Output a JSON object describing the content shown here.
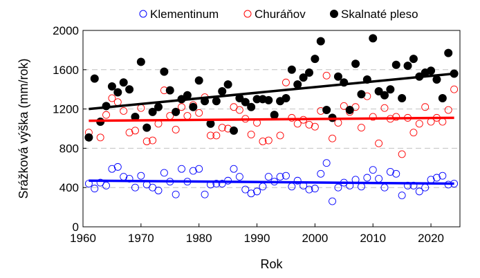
{
  "chart_data": {
    "type": "scatter",
    "title": "",
    "xlabel": "Rok",
    "ylabel": "Srážková  výška (mm/rok)",
    "xlim": [
      1960,
      2025
    ],
    "ylim": [
      0,
      2000
    ],
    "x_ticks": [
      1960,
      1970,
      1980,
      1990,
      2000,
      2010,
      2020
    ],
    "y_ticks": [
      0,
      400,
      800,
      1200,
      1600,
      2000
    ],
    "grid": "horizontal dashed",
    "legend_position": "top",
    "series": [
      {
        "name": "Klementinum",
        "color": "#0000ff",
        "marker": "open-circle",
        "x": [
          1961,
          1962,
          1963,
          1964,
          1965,
          1966,
          1967,
          1968,
          1969,
          1970,
          1971,
          1972,
          1973,
          1974,
          1975,
          1976,
          1977,
          1978,
          1979,
          1980,
          1981,
          1982,
          1983,
          1984,
          1985,
          1986,
          1987,
          1988,
          1989,
          1990,
          1991,
          1992,
          1993,
          1994,
          1995,
          1996,
          1997,
          1998,
          1999,
          2000,
          2001,
          2002,
          2003,
          2004,
          2005,
          2006,
          2007,
          2008,
          2009,
          2010,
          2011,
          2012,
          2013,
          2014,
          2015,
          2016,
          2017,
          2018,
          2019,
          2020,
          2021,
          2022,
          2023,
          2024
        ],
        "values": [
          440,
          390,
          450,
          420,
          590,
          610,
          510,
          490,
          400,
          520,
          430,
          400,
          370,
          550,
          460,
          330,
          590,
          460,
          570,
          590,
          330,
          430,
          440,
          440,
          470,
          590,
          510,
          380,
          340,
          360,
          410,
          510,
          460,
          510,
          520,
          410,
          470,
          420,
          380,
          390,
          540,
          650,
          260,
          400,
          450,
          420,
          480,
          410,
          500,
          580,
          490,
          400,
          560,
          540,
          320,
          420,
          420,
          360,
          400,
          480,
          500,
          520,
          430,
          440
        ]
      },
      {
        "name": "Churáňov",
        "color": "#ff0000",
        "marker": "open-circle",
        "x": [
          1961,
          1962,
          1963,
          1964,
          1965,
          1966,
          1967,
          1968,
          1969,
          1970,
          1971,
          1972,
          1973,
          1974,
          1975,
          1976,
          1977,
          1978,
          1979,
          1980,
          1981,
          1982,
          1983,
          1984,
          1985,
          1986,
          1987,
          1988,
          1989,
          1990,
          1991,
          1992,
          1993,
          1994,
          1995,
          1996,
          1997,
          1998,
          1999,
          2000,
          2001,
          2002,
          2003,
          2004,
          2005,
          2006,
          2007,
          2008,
          2009,
          2010,
          2011,
          2012,
          2013,
          2014,
          2015,
          2016,
          2017,
          2018,
          2019,
          2020,
          2021,
          2022,
          2023,
          2024
        ],
        "values": [
          960,
          1510,
          910,
          1140,
          1310,
          1270,
          1180,
          960,
          980,
          1210,
          870,
          880,
          1050,
          1390,
          1130,
          990,
          1220,
          1130,
          1240,
          1160,
          1320,
          930,
          930,
          1010,
          1000,
          1220,
          1190,
          1100,
          940,
          1060,
          870,
          880,
          1130,
          930,
          1470,
          1110,
          1050,
          1090,
          1040,
          1020,
          1180,
          1540,
          900,
          1060,
          1230,
          1170,
          1220,
          1010,
          1330,
          1120,
          850,
          1210,
          1100,
          1120,
          740,
          1110,
          960,
          1050,
          1220,
          1070,
          1110,
          1070,
          1190,
          1400
        ]
      },
      {
        "name": "Skalnaté pleso",
        "color": "#000000",
        "marker": "filled-circle",
        "x": [
          1961,
          1962,
          1963,
          1964,
          1965,
          1966,
          1967,
          1968,
          1969,
          1970,
          1971,
          1972,
          1973,
          1974,
          1975,
          1976,
          1977,
          1978,
          1979,
          1980,
          1981,
          1982,
          1983,
          1984,
          1985,
          1986,
          1987,
          1988,
          1989,
          1990,
          1991,
          1992,
          1993,
          1994,
          1995,
          1996,
          1997,
          1998,
          1999,
          2000,
          2001,
          2002,
          2003,
          2004,
          2005,
          2006,
          2007,
          2008,
          2009,
          2010,
          2011,
          2012,
          2013,
          2014,
          2015,
          2016,
          2017,
          2018,
          2019,
          2020,
          2021,
          2022,
          2023,
          2024
        ],
        "values": [
          910,
          1510,
          1070,
          1230,
          1430,
          1370,
          1470,
          1400,
          1120,
          1680,
          1010,
          1170,
          1220,
          1580,
          1390,
          1170,
          1300,
          1340,
          1220,
          1490,
          1280,
          1050,
          1280,
          1380,
          1450,
          980,
          1310,
          1270,
          1220,
          1300,
          1300,
          1290,
          1140,
          1280,
          1310,
          1600,
          1450,
          1520,
          1570,
          1710,
          1890,
          1190,
          1110,
          1530,
          1470,
          1190,
          1660,
          1350,
          1500,
          1920,
          1380,
          1340,
          1400,
          1650,
          1310,
          1640,
          1710,
          1530,
          1570,
          1590,
          1500,
          1310,
          1770,
          1560
        ]
      }
    ],
    "trendlines": [
      {
        "series": "Klementinum",
        "color": "#0000ff",
        "x": [
          1961,
          2024
        ],
        "y": [
          470,
          440
        ]
      },
      {
        "series": "Churáňov",
        "color": "#ff0000",
        "x": [
          1961,
          2024
        ],
        "y": [
          1080,
          1110
        ]
      },
      {
        "series": "Skalnaté pleso",
        "color": "#000000",
        "x": [
          1961,
          2024
        ],
        "y": [
          1200,
          1560
        ]
      }
    ]
  }
}
